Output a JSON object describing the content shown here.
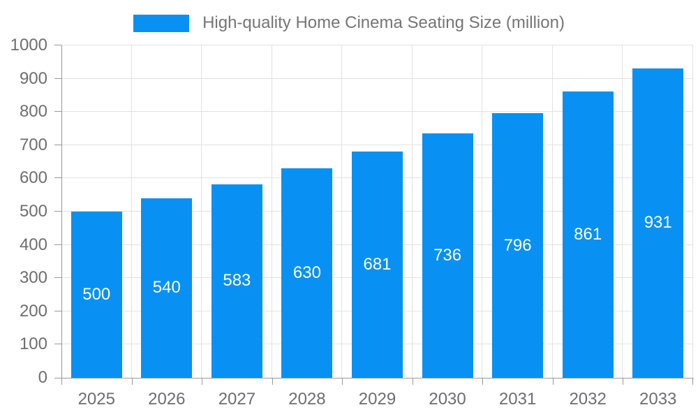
{
  "chart_data": {
    "type": "bar",
    "title": "High-quality Home Cinema Seating Size (million)",
    "categories": [
      "2025",
      "2026",
      "2027",
      "2028",
      "2029",
      "2030",
      "2031",
      "2032",
      "2033"
    ],
    "values": [
      500,
      540,
      583,
      630,
      681,
      736,
      796,
      861,
      931
    ],
    "xlabel": "",
    "ylabel": "",
    "ylim": [
      0,
      1000
    ],
    "y_ticks": [
      0,
      100,
      200,
      300,
      400,
      500,
      600,
      700,
      800,
      900,
      1000
    ],
    "grid": true,
    "legend_position": "top",
    "value_labels": "inside-center",
    "colors": {
      "bar": "#0891f2",
      "value_text": "#ffffff",
      "axis_text": "#6e6e6e",
      "legend_text": "#757575",
      "grid_line": "#e2e2e2",
      "axis_line": "#999999",
      "background": "#ffffff"
    }
  }
}
